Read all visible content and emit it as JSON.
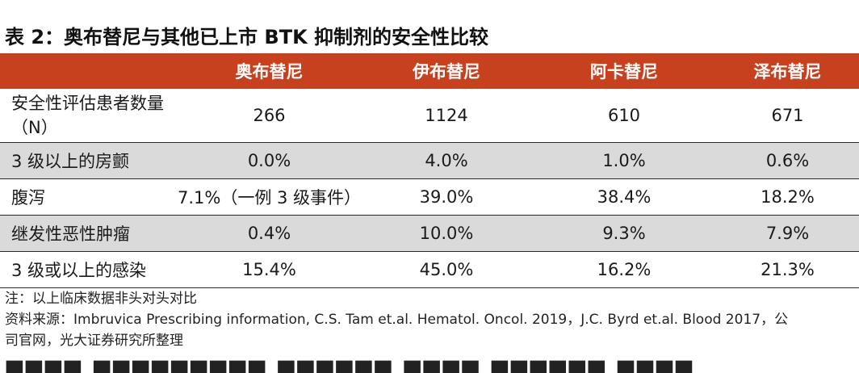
{
  "title": "表 2：奥布替尼与其他已上市 BTK 抑制剂的安全性比较",
  "table": {
    "columns": [
      "",
      "奥布替尼",
      "伊布替尼",
      "阿卡替尼",
      "泽布替尼"
    ],
    "rows": [
      {
        "label": "安全性评估患者数量（N）",
        "values": [
          "266",
          "1124",
          "610",
          "671"
        ]
      },
      {
        "label": "3 级以上的房颤",
        "values": [
          "0.0%",
          "4.0%",
          "1.0%",
          "0.6%"
        ]
      },
      {
        "label": "腹泻",
        "values": [
          "7.1%（一例 3 级事件）",
          "39.0%",
          "38.4%",
          "18.2%"
        ]
      },
      {
        "label": "继发性恶性肿瘤",
        "values": [
          "0.4%",
          "10.0%",
          "9.3%",
          "7.9%"
        ]
      },
      {
        "label": "3 级或以上的感染",
        "values": [
          "15.4%",
          "45.0%",
          "16.2%",
          "21.3%"
        ]
      }
    ]
  },
  "notes": [
    "注：以上临床数据非头对头对比",
    "资料来源：Imbruvica Prescribing information, C.S. Tam et.al. Hematol. Oncol. 2019，J.C. Byrd et.al. Blood 2017，公",
    "司官网，光大证券研究所整理"
  ],
  "colors": {
    "header_bg": "#c8411f",
    "header_text": "#ffffff",
    "shade": "#dadada"
  }
}
